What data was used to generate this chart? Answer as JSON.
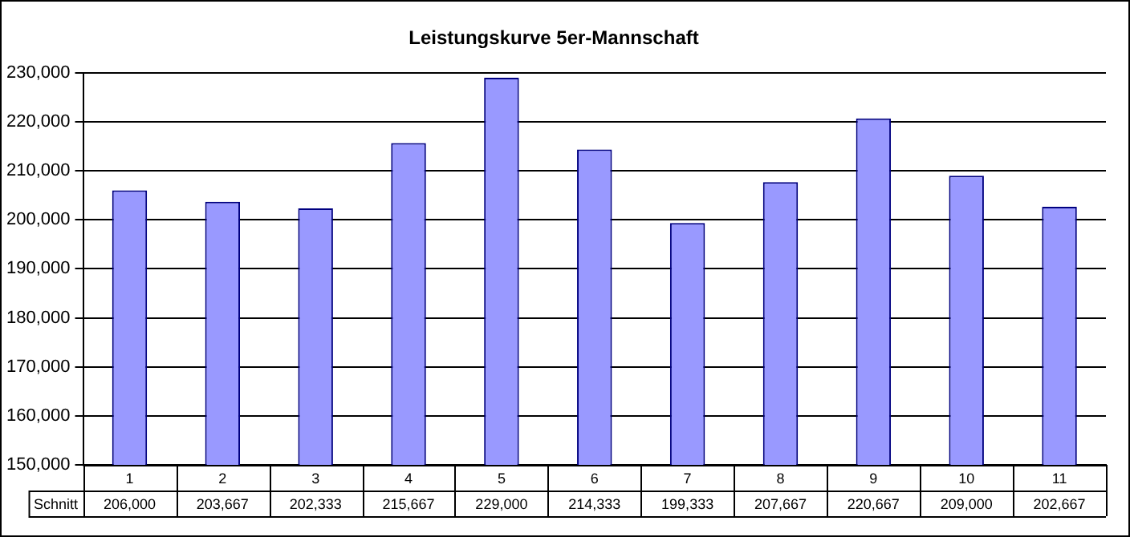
{
  "chart_data": {
    "type": "bar",
    "title": "Leistungskurve 5er-Mannschaft",
    "categories": [
      "1",
      "2",
      "3",
      "4",
      "5",
      "6",
      "7",
      "8",
      "9",
      "10",
      "11"
    ],
    "series": [
      {
        "name": "Schnitt",
        "color": "#9999ff",
        "values": [
          206000,
          203667,
          202333,
          215667,
          229000,
          214333,
          199333,
          207667,
          220667,
          209000,
          202667
        ],
        "value_labels": [
          "206,000",
          "203,667",
          "202,333",
          "215,667",
          "229,000",
          "214,333",
          "199,333",
          "207,667",
          "220,667",
          "209,000",
          "202,667"
        ]
      }
    ],
    "ylim": [
      150000,
      230000
    ],
    "yticks": [
      {
        "value": 150000,
        "label": "150,000"
      },
      {
        "value": 160000,
        "label": "160,000"
      },
      {
        "value": 170000,
        "label": "170,000"
      },
      {
        "value": 180000,
        "label": "180,000"
      },
      {
        "value": 190000,
        "label": "190,000"
      },
      {
        "value": 200000,
        "label": "200,000"
      },
      {
        "value": 210000,
        "label": "210,000"
      },
      {
        "value": 220000,
        "label": "220,000"
      },
      {
        "value": 230000,
        "label": "230,000"
      }
    ],
    "grid": "y",
    "legend": false
  }
}
